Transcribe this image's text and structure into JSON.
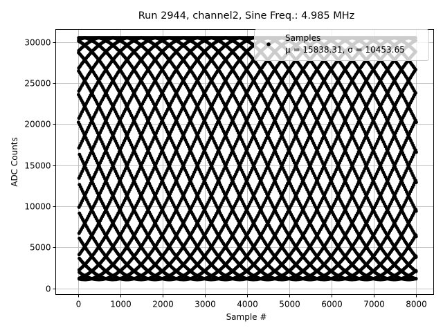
{
  "chart_data": {
    "type": "scatter",
    "title": "Run 2944, channel2, Sine Freq.: 4.985 MHz",
    "xlabel": "Sample #",
    "ylabel": "ADC Counts",
    "xlim": [
      -540,
      8410
    ],
    "ylim": [
      -758,
      31517
    ],
    "xticks": [
      0,
      1000,
      2000,
      3000,
      4000,
      5000,
      6000,
      7000,
      8000
    ],
    "yticks": [
      0,
      5000,
      10000,
      15000,
      20000,
      25000,
      30000
    ],
    "grid": true,
    "legend_placement": "upper right",
    "series": [
      {
        "name": "Samples",
        "stats_label": "μ = 15838.31, σ = 10453.65",
        "mean": 15838.31,
        "sigma": 10453.65,
        "n_samples": 8000,
        "sine_frequency_mhz": 4.985,
        "color": "#000000"
      }
    ]
  }
}
